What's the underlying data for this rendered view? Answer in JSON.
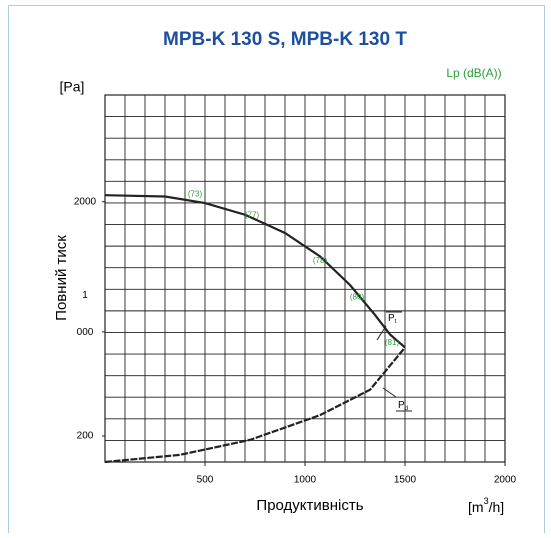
{
  "chart_data": {
    "type": "line",
    "title": "MPB-K 130 S, MPB-K 130 T",
    "y_unit": "[Pa]",
    "y_label": "Повний тиск",
    "x_label": "Продуктивність",
    "x_unit": {
      "pre": "[m",
      "sup": "3",
      "post": "/h]"
    },
    "sound_label": "Lp (dB(A))",
    "xlim": [
      0,
      2000
    ],
    "xticks": [
      500,
      1000,
      1500,
      2000
    ],
    "ylim": [
      0,
      2820
    ],
    "yticks": [
      200,
      {
        "value": 1000,
        "label": "1 000"
      },
      2000
    ],
    "grid": true,
    "series": [
      {
        "name": {
          "main": "P",
          "sub": "t"
        },
        "color": "#222222",
        "x": [
          0,
          300,
          500,
          700,
          900,
          1075,
          1225,
          1350,
          1425,
          1500
        ],
        "values": [
          2050,
          2040,
          1990,
          1900,
          1760,
          1580,
          1360,
          1130,
          980,
          880
        ]
      },
      {
        "name": {
          "main": "P",
          "sub": "d"
        },
        "color": "#222222",
        "x": [
          0,
          375,
          725,
          1075,
          1325,
          1500
        ],
        "values": [
          0,
          55,
          170,
          360,
          555,
          880
        ]
      }
    ],
    "sound_levels": [
      {
        "x": 450,
        "y": 2040,
        "label": "(73)"
      },
      {
        "x": 735,
        "y": 1880,
        "label": "(77)"
      },
      {
        "x": 1075,
        "y": 1530,
        "label": "(78)"
      },
      {
        "x": 1260,
        "y": 1250,
        "label": "(80)"
      },
      {
        "x": 1435,
        "y": 900,
        "label": "(81)"
      }
    ],
    "sound_color": "#2e9b3e"
  }
}
